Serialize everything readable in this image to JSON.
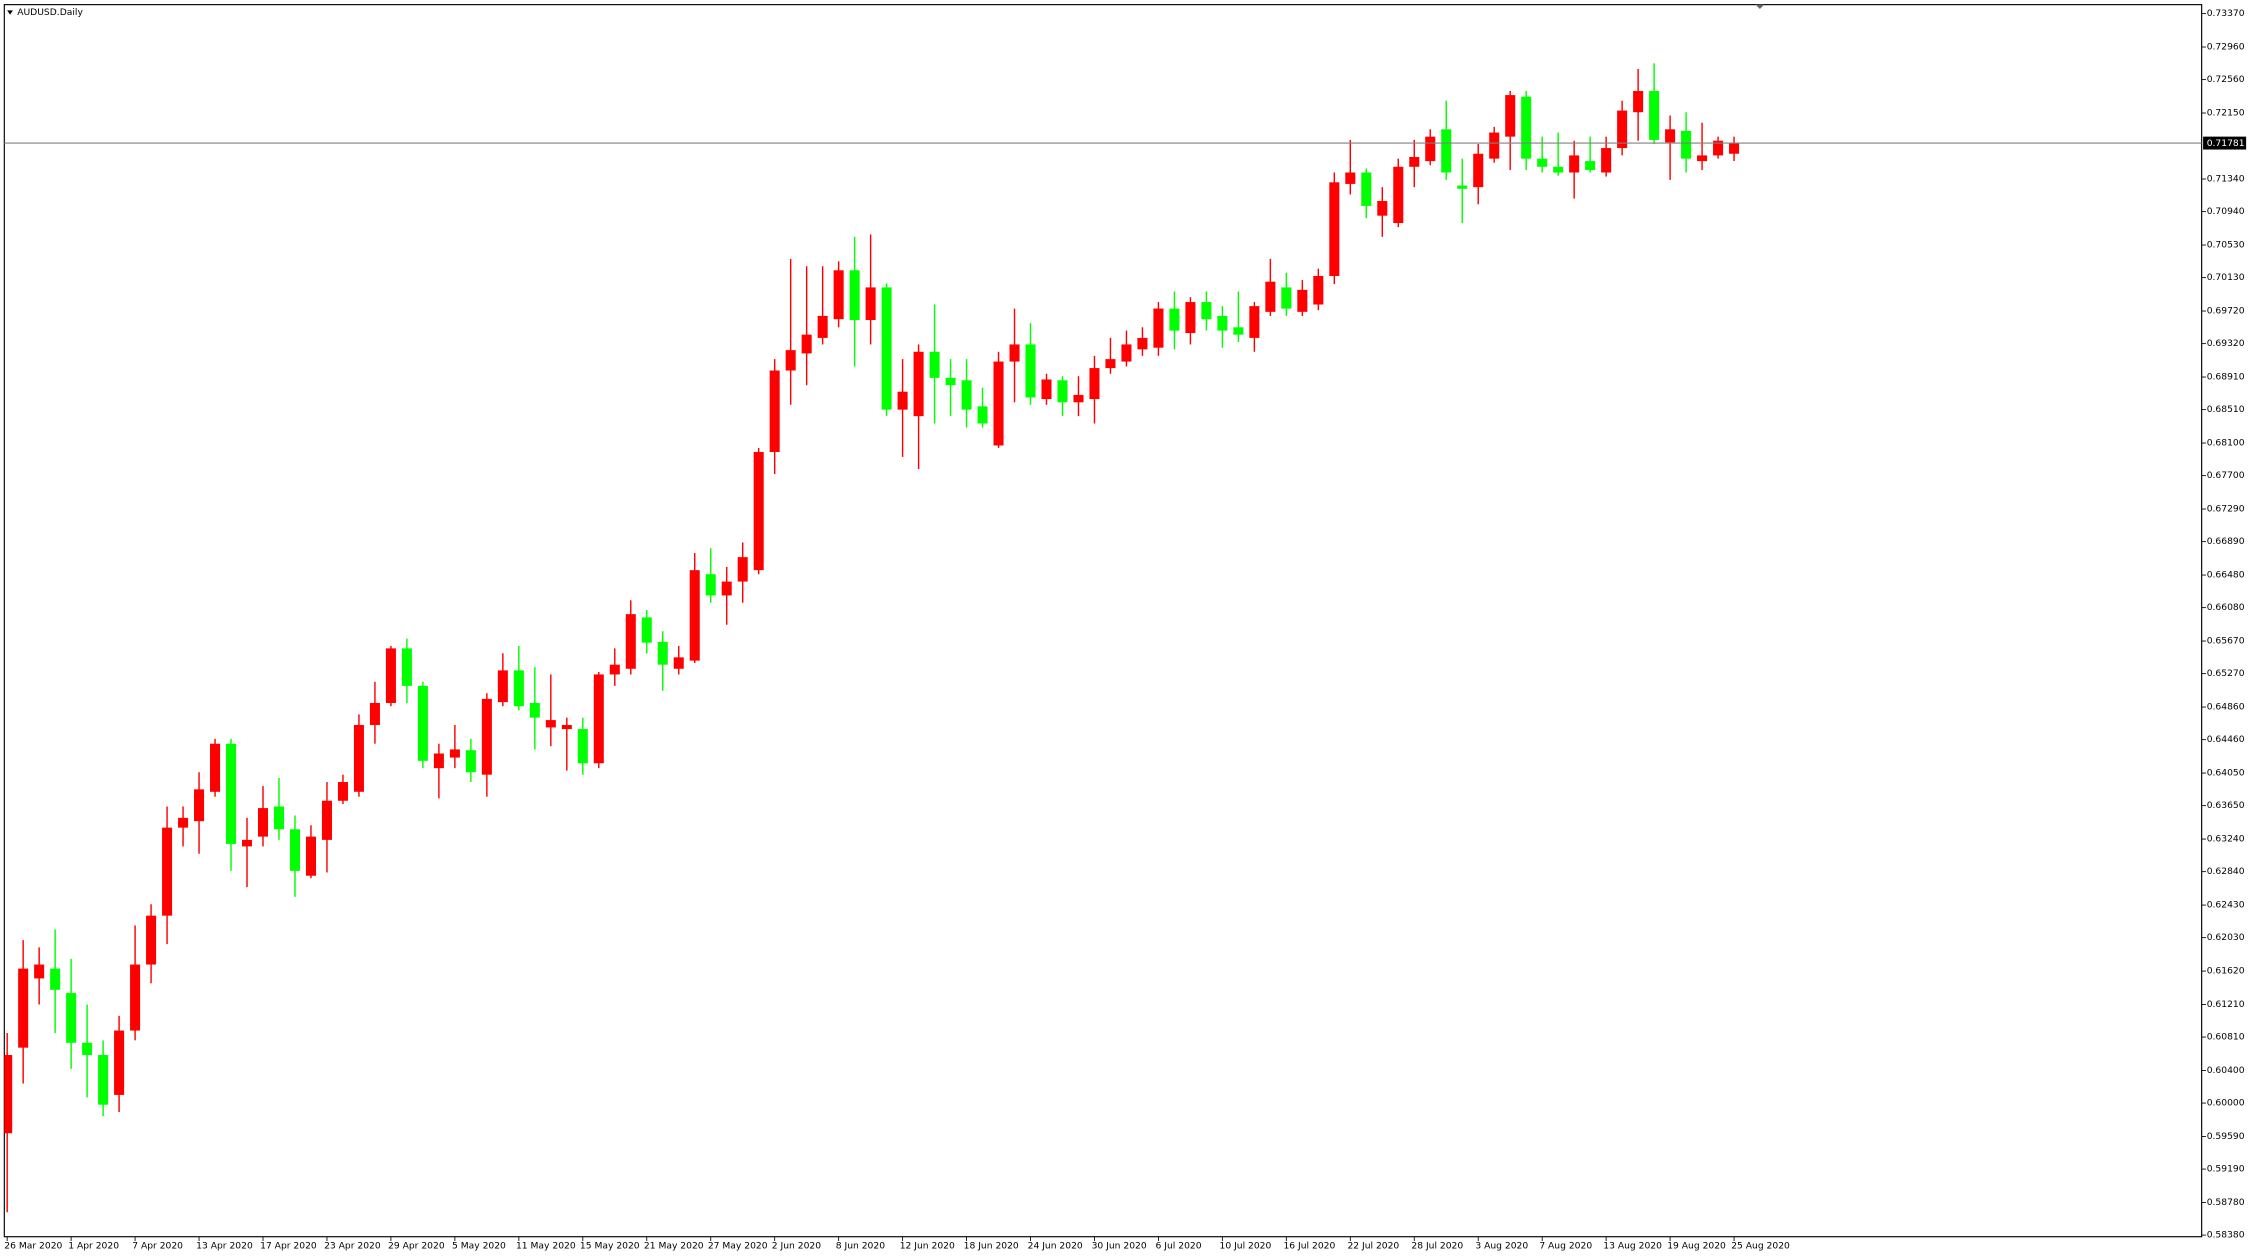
{
  "chart_data": {
    "type": "candlestick",
    "title": "AUDUSD.Daily",
    "up_color": "#ff0000",
    "down_color": "#00ff00",
    "grid": false,
    "categories": [
      "26 Mar 2020",
      null,
      null,
      null,
      "1 Apr 2020",
      null,
      null,
      null,
      "7 Apr 2020",
      null,
      null,
      null,
      "13 Apr 2020",
      null,
      null,
      null,
      "17 Apr 2020",
      null,
      null,
      null,
      "23 Apr 2020",
      null,
      null,
      null,
      "29 Apr 2020",
      null,
      null,
      null,
      "5 May 2020",
      null,
      null,
      null,
      "11 May 2020",
      null,
      null,
      null,
      "15 May 2020",
      null,
      null,
      null,
      "21 May 2020",
      null,
      null,
      null,
      "27 May 2020",
      null,
      null,
      null,
      "2 Jun 2020",
      null,
      null,
      null,
      "8 Jun 2020",
      null,
      null,
      null,
      "12 Jun 2020",
      null,
      null,
      null,
      "18 Jun 2020",
      null,
      null,
      null,
      "24 Jun 2020",
      null,
      null,
      null,
      "30 Jun 2020",
      null,
      null,
      null,
      "6 Jul 2020",
      null,
      null,
      null,
      "10 Jul 2020",
      null,
      null,
      null,
      "16 Jul 2020",
      null,
      null,
      null,
      "22 Jul 2020",
      null,
      null,
      null,
      "28 Jul 2020",
      null,
      null,
      null,
      "3 Aug 2020",
      null,
      null,
      null,
      "7 Aug 2020",
      null,
      null,
      null,
      "13 Aug 2020",
      null,
      null,
      null,
      "19 Aug 2020",
      null,
      null,
      null,
      "25 Aug 2020"
    ],
    "open": [
      0.5963,
      0.6068,
      0.6153,
      0.6165,
      0.6135,
      0.6074,
      0.6059,
      0.601,
      0.6089,
      0.617,
      0.623,
      0.6338,
      0.6346,
      0.6382,
      0.6441,
      0.6315,
      0.6327,
      0.6364,
      0.6336,
      0.6279,
      0.6323,
      0.6371,
      0.6382,
      0.6464,
      0.6491,
      0.6558,
      0.6512,
      0.6411,
      0.6424,
      0.6433,
      0.6403,
      0.6492,
      0.6531,
      0.6491,
      0.6461,
      0.6459,
      0.6459,
      0.6417,
      0.6526,
      0.6533,
      0.6596,
      0.6566,
      0.6533,
      0.6543,
      0.6649,
      0.6623,
      0.664,
      0.6654,
      0.6799,
      0.6899,
      0.692,
      0.6939,
      0.6962,
      0.7022,
      0.6961,
      0.7001,
      0.6851,
      0.6843,
      0.6922,
      0.689,
      0.6887,
      0.6855,
      0.6807,
      0.691,
      0.6931,
      0.6864,
      0.6887,
      0.686,
      0.6864,
      0.6902,
      0.691,
      0.6925,
      0.6927,
      0.6975,
      0.6945,
      0.6983,
      0.6966,
      0.6952,
      0.6939,
      0.6971,
      0.7001,
      0.6971,
      0.698,
      0.7015,
      0.7128,
      0.7142,
      0.7089,
      0.708,
      0.7149,
      0.7156,
      0.7195,
      0.7126,
      0.7124,
      0.7159,
      0.7186,
      0.7235,
      0.7159,
      0.7149,
      0.7142,
      0.7156,
      0.7142,
      0.7172,
      0.7216,
      0.7242,
      0.7179,
      0.7193,
      0.7156,
      0.7163,
      0.7165
    ],
    "high": [
      0.6086,
      0.62,
      0.6191,
      0.6213,
      0.6177,
      0.6121,
      0.6077,
      0.6107,
      0.6218,
      0.6244,
      0.6364,
      0.6364,
      0.6406,
      0.6447,
      0.6447,
      0.635,
      0.6389,
      0.6399,
      0.6353,
      0.6341,
      0.6394,
      0.6403,
      0.6477,
      0.6517,
      0.6561,
      0.657,
      0.6517,
      0.6441,
      0.6464,
      0.6447,
      0.6503,
      0.6552,
      0.6561,
      0.6535,
      0.6526,
      0.6473,
      0.6473,
      0.6529,
      0.6558,
      0.6617,
      0.6605,
      0.6579,
      0.6561,
      0.6675,
      0.6681,
      0.6658,
      0.6688,
      0.6804,
      0.6913,
      0.7036,
      0.7027,
      0.7027,
      0.7033,
      0.7063,
      0.7066,
      0.7006,
      0.6913,
      0.6931,
      0.698,
      0.6913,
      0.6913,
      0.6878,
      0.6922,
      0.6975,
      0.6957,
      0.6895,
      0.6892,
      0.6892,
      0.6917,
      0.6939,
      0.6948,
      0.6952,
      0.6983,
      0.6996,
      0.6989,
      0.6996,
      0.6978,
      0.6996,
      0.6983,
      0.7036,
      0.7019,
      0.701,
      0.7024,
      0.7142,
      0.7182,
      0.7147,
      0.7124,
      0.7159,
      0.7182,
      0.7195,
      0.723,
      0.7159,
      0.7177,
      0.7198,
      0.7242,
      0.7242,
      0.7186,
      0.7191,
      0.7181,
      0.7186,
      0.7186,
      0.723,
      0.7269,
      0.7276,
      0.7212,
      0.7216,
      0.7203,
      0.7186,
      0.7186
    ],
    "low": [
      0.5866,
      0.6024,
      0.6121,
      0.6086,
      0.6042,
      0.6007,
      0.5984,
      0.5989,
      0.6077,
      0.6147,
      0.6195,
      0.6315,
      0.6306,
      0.6376,
      0.6285,
      0.6265,
      0.6315,
      0.6323,
      0.6253,
      0.6276,
      0.6283,
      0.6367,
      0.6376,
      0.6441,
      0.6487,
      0.6491,
      0.6411,
      0.6374,
      0.6411,
      0.6394,
      0.6376,
      0.6487,
      0.6482,
      0.6434,
      0.6438,
      0.6408,
      0.6403,
      0.6411,
      0.6512,
      0.6526,
      0.6552,
      0.6506,
      0.6526,
      0.654,
      0.6614,
      0.6587,
      0.6614,
      0.6649,
      0.6772,
      0.6857,
      0.6881,
      0.6931,
      0.6952,
      0.6904,
      0.6931,
      0.6843,
      0.6793,
      0.6778,
      0.6834,
      0.6843,
      0.6829,
      0.6829,
      0.6804,
      0.686,
      0.6857,
      0.6857,
      0.6843,
      0.6843,
      0.6834,
      0.6895,
      0.6904,
      0.6917,
      0.6917,
      0.6925,
      0.6931,
      0.6948,
      0.6927,
      0.6934,
      0.6922,
      0.6966,
      0.6966,
      0.6966,
      0.6973,
      0.7005,
      0.7115,
      0.7086,
      0.7063,
      0.7075,
      0.7124,
      0.7151,
      0.7133,
      0.708,
      0.7103,
      0.7154,
      0.7145,
      0.7145,
      0.7142,
      0.7138,
      0.711,
      0.7142,
      0.7137,
      0.7163,
      0.7181,
      0.7177,
      0.7133,
      0.7142,
      0.7145,
      0.7159,
      0.7156
    ],
    "close": [
      0.6059,
      0.6165,
      0.617,
      0.6139,
      0.6074,
      0.6059,
      0.5998,
      0.6089,
      0.617,
      0.623,
      0.6338,
      0.635,
      0.6385,
      0.6441,
      0.6318,
      0.6323,
      0.6362,
      0.6336,
      0.6285,
      0.6327,
      0.6371,
      0.6394,
      0.6464,
      0.6491,
      0.6558,
      0.6512,
      0.642,
      0.6429,
      0.6434,
      0.6406,
      0.6496,
      0.6531,
      0.6487,
      0.6473,
      0.647,
      0.6464,
      0.6417,
      0.6526,
      0.6538,
      0.66,
      0.6565,
      0.6538,
      0.6547,
      0.6654,
      0.6623,
      0.664,
      0.667,
      0.6799,
      0.6899,
      0.6924,
      0.6943,
      0.6966,
      0.7022,
      0.6961,
      0.7001,
      0.6851,
      0.6873,
      0.6922,
      0.689,
      0.6881,
      0.6851,
      0.6834,
      0.691,
      0.6931,
      0.6866,
      0.6888,
      0.686,
      0.6869,
      0.6902,
      0.6913,
      0.6931,
      0.6939,
      0.6975,
      0.6948,
      0.6983,
      0.6962,
      0.6948,
      0.6943,
      0.6978,
      0.7008,
      0.6975,
      0.6998,
      0.7015,
      0.713,
      0.7142,
      0.7101,
      0.7107,
      0.7149,
      0.7161,
      0.7186,
      0.7142,
      0.7122,
      0.7165,
      0.7191,
      0.7237,
      0.7159,
      0.7149,
      0.7142,
      0.7163,
      0.7145,
      0.7172,
      0.7218,
      0.7242,
      0.7182,
      0.7195,
      0.7159,
      0.7163,
      0.7181,
      0.7178
    ],
    "current_price": {
      "value": 0.71781,
      "label": "0.71781"
    },
    "current_price_color": "#808080",
    "ylim": [
      0.5836,
      0.7348
    ],
    "yticks": [
      {
        "value": 0.7337,
        "label": "0.73370"
      },
      {
        "value": 0.7296,
        "label": "0.72960"
      },
      {
        "value": 0.7256,
        "label": "0.72560"
      },
      {
        "value": 0.7215,
        "label": "0.72150"
      },
      {
        "value": 0.7134,
        "label": "0.71340"
      },
      {
        "value": 0.7094,
        "label": "0.70940"
      },
      {
        "value": 0.7053,
        "label": "0.70530"
      },
      {
        "value": 0.7013,
        "label": "0.70130"
      },
      {
        "value": 0.6972,
        "label": "0.69720"
      },
      {
        "value": 0.6932,
        "label": "0.69320"
      },
      {
        "value": 0.6891,
        "label": "0.68910"
      },
      {
        "value": 0.6851,
        "label": "0.68510"
      },
      {
        "value": 0.681,
        "label": "0.68100"
      },
      {
        "value": 0.677,
        "label": "0.67700"
      },
      {
        "value": 0.6729,
        "label": "0.67290"
      },
      {
        "value": 0.6689,
        "label": "0.66890"
      },
      {
        "value": 0.6648,
        "label": "0.66480"
      },
      {
        "value": 0.6608,
        "label": "0.66080"
      },
      {
        "value": 0.6567,
        "label": "0.65670"
      },
      {
        "value": 0.6527,
        "label": "0.65270"
      },
      {
        "value": 0.6486,
        "label": "0.64860"
      },
      {
        "value": 0.6446,
        "label": "0.64460"
      },
      {
        "value": 0.6405,
        "label": "0.64050"
      },
      {
        "value": 0.6365,
        "label": "0.63650"
      },
      {
        "value": 0.6324,
        "label": "0.63240"
      },
      {
        "value": 0.6284,
        "label": "0.62840"
      },
      {
        "value": 0.6243,
        "label": "0.62430"
      },
      {
        "value": 0.6203,
        "label": "0.62030"
      },
      {
        "value": 0.6162,
        "label": "0.61620"
      },
      {
        "value": 0.6121,
        "label": "0.61210"
      },
      {
        "value": 0.6081,
        "label": "0.60810"
      },
      {
        "value": 0.604,
        "label": "0.60400"
      },
      {
        "value": 0.6,
        "label": "0.60000"
      },
      {
        "value": 0.5959,
        "label": "0.59590"
      },
      {
        "value": 0.5919,
        "label": "0.59190"
      },
      {
        "value": 0.5878,
        "label": "0.58780"
      },
      {
        "value": 0.5838,
        "label": "0.58380"
      }
    ]
  }
}
